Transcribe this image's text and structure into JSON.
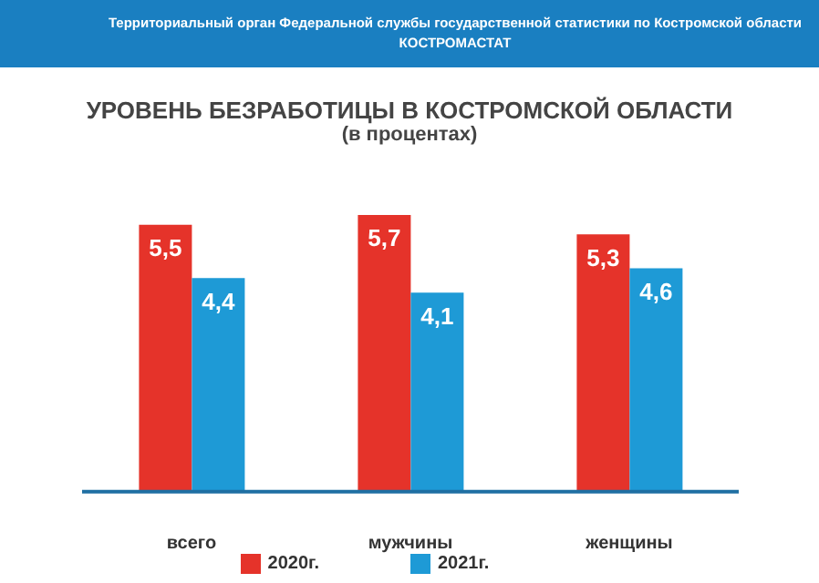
{
  "chart_data": {
    "type": "bar",
    "title": "УРОВЕНЬ БЕЗРАБОТИЦЫ В КОСТРОМСКОЙ ОБЛАСТИ",
    "subtitle": "(в процентах)",
    "annotations": [
      "Территориальный орган Федеральной службы государственной статистики по Костромской области",
      "КОСТРОМАСТАТ"
    ],
    "categories": [
      "всего",
      "мужчины",
      "женщины"
    ],
    "series": [
      {
        "name": "2020г.",
        "color": "#e5332a",
        "values": [
          5.5,
          5.7,
          5.3
        ],
        "value_labels": [
          "5,5",
          "5,7",
          "5,3"
        ]
      },
      {
        "name": "2021г.",
        "color": "#1e9ad6",
        "values": [
          4.4,
          4.1,
          4.6
        ],
        "value_labels": [
          "4,4",
          "4,1",
          "4,6"
        ]
      }
    ],
    "grid": false,
    "legend": "bottom"
  }
}
